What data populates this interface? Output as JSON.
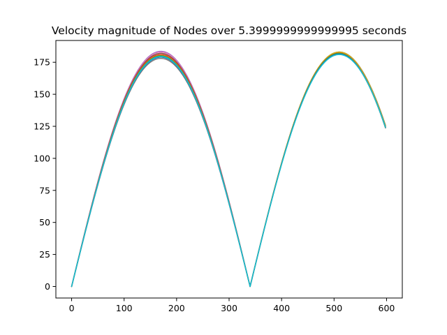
{
  "chart_data": {
    "type": "line",
    "title": "Velocity magnitude of Nodes over 5.3999999999999995 seconds",
    "xlabel": "",
    "ylabel": "",
    "xlim": [
      -30,
      630
    ],
    "ylim": [
      -9,
      192
    ],
    "grid": false,
    "legend": "none",
    "x_ticks": [
      0,
      100,
      200,
      300,
      400,
      500,
      600
    ],
    "y_ticks": [
      0,
      25,
      50,
      75,
      100,
      125,
      150,
      175
    ],
    "x_tick_labels": [
      "0",
      "100",
      "200",
      "300",
      "400",
      "500",
      "600"
    ],
    "y_tick_labels": [
      "0",
      "25",
      "50",
      "75",
      "100",
      "125",
      "150",
      "175"
    ],
    "series_shape": {
      "x_range": [
        0,
        599
      ],
      "first_peak_x": 170,
      "zero_crossing_x": 340,
      "second_peak_x": 510,
      "end_x": 599
    },
    "series": [
      {
        "color": "#9467bd",
        "peak1": 183.5,
        "peak2": 182.0,
        "end": 123.5
      },
      {
        "color": "#e377c2",
        "peak1": 183.0,
        "peak2": 182.5,
        "end": 124.0
      },
      {
        "color": "#8c564b",
        "peak1": 182.0,
        "peak2": 183.0,
        "end": 124.5
      },
      {
        "color": "#d62728",
        "peak1": 181.0,
        "peak2": 182.5,
        "end": 123.5
      },
      {
        "color": "#bcbd22",
        "peak1": 179.5,
        "peak2": 183.0,
        "end": 124.0
      },
      {
        "color": "#ff7f0e",
        "peak1": 180.5,
        "peak2": 182.5,
        "end": 123.0
      },
      {
        "color": "#2ca02c",
        "peak1": 180.0,
        "peak2": 182.0,
        "end": 122.5
      },
      {
        "color": "#7f7f7f",
        "peak1": 178.0,
        "peak2": 181.5,
        "end": 122.5
      },
      {
        "color": "#1f77b4",
        "peak1": 179.0,
        "peak2": 181.5,
        "end": 123.0
      },
      {
        "color": "#17becf",
        "peak1": 179.5,
        "peak2": 181.0,
        "end": 123.0
      }
    ]
  }
}
